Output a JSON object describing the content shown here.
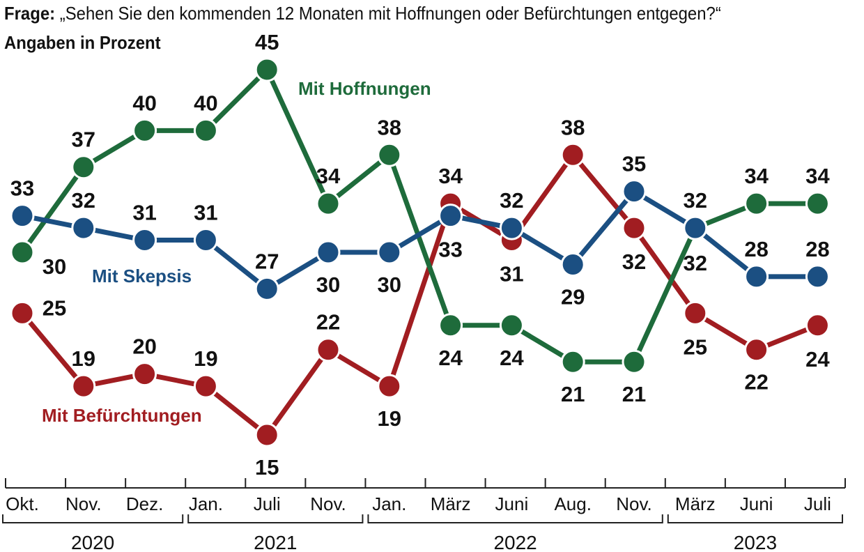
{
  "chart_data": {
    "type": "line",
    "title_prefix": "Frage:",
    "title": "„Sehen Sie den kommenden 12 Monaten mit Hoffnungen oder Befürchtungen entgegen?“",
    "subtitle": "Angaben in Prozent",
    "categories": [
      "Okt.",
      "Nov.",
      "Dez.",
      "Jan.",
      "Juli",
      "Nov.",
      "Jan.",
      "März",
      "Juni",
      "Aug.",
      "Nov.",
      "März",
      "Juni",
      "Juli"
    ],
    "years": [
      {
        "label": "2020",
        "start": 0,
        "end": 2
      },
      {
        "label": "2021",
        "start": 3,
        "end": 5
      },
      {
        "label": "2022",
        "start": 6,
        "end": 10
      },
      {
        "label": "2023",
        "start": 11,
        "end": 13
      }
    ],
    "ylim": [
      10,
      50
    ],
    "series": [
      {
        "name": "Mit Befürchtungen",
        "color": "#a11d21",
        "values": [
          25,
          19,
          20,
          19,
          15,
          22,
          19,
          34,
          31,
          38,
          32,
          25,
          22,
          24
        ]
      },
      {
        "name": "Mit Hoffnungen",
        "color": "#1e6b3b",
        "values": [
          30,
          37,
          40,
          40,
          45,
          34,
          38,
          24,
          24,
          21,
          21,
          32,
          34,
          34
        ]
      },
      {
        "name": "Mit Skepsis",
        "color": "#1b4f82",
        "values": [
          33,
          32,
          31,
          31,
          27,
          30,
          30,
          33,
          32,
          29,
          35,
          32,
          28,
          28
        ]
      }
    ]
  }
}
